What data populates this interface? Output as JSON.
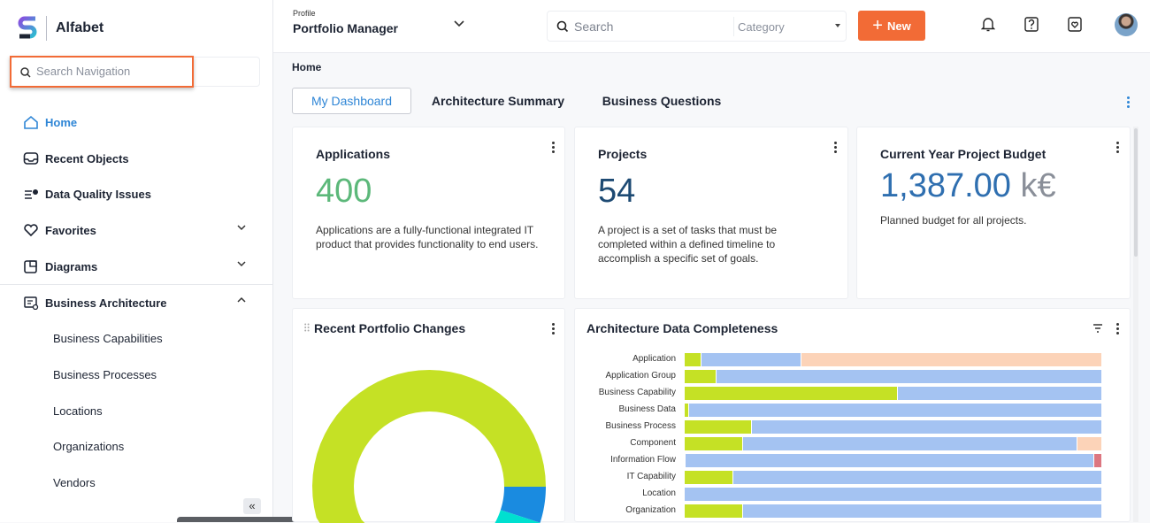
{
  "app": {
    "name": "Alfabet"
  },
  "sidebar": {
    "search_placeholder": "Search Navigation",
    "items": [
      {
        "label": "Home",
        "icon": "home-icon",
        "active": true
      },
      {
        "label": "Recent Objects",
        "icon": "inbox-icon"
      },
      {
        "label": "Data Quality Issues",
        "icon": "data-quality-icon"
      },
      {
        "label": "Favorites",
        "icon": "heart-icon",
        "expand": "down"
      },
      {
        "label": "Diagrams",
        "icon": "diagram-icon",
        "expand": "down"
      },
      {
        "label": "Business Architecture",
        "icon": "business-architecture-icon",
        "expand": "up"
      }
    ],
    "sub_items": [
      "Business Capabilities",
      "Business Processes",
      "Locations",
      "Organizations",
      "Vendors"
    ],
    "collapse_label": "«"
  },
  "header": {
    "profile_label": "Profile",
    "profile_value": "Portfolio Manager",
    "search_placeholder": "Search",
    "category_placeholder": "Category",
    "new_label": "New"
  },
  "breadcrumb": "Home",
  "tabs": [
    {
      "label": "My Dashboard",
      "active": true
    },
    {
      "label": "Architecture Summary"
    },
    {
      "label": "Business Questions"
    }
  ],
  "cards": {
    "applications": {
      "title": "Applications",
      "value": "400",
      "desc": "Applications are a fully-functional integrated IT product that provides functionality to end users.",
      "color": "#5cb87a"
    },
    "projects": {
      "title": "Projects",
      "value": "54",
      "desc": "A project is a set of tasks that must be completed within a defined timeline to accomplish a specific set of goals.",
      "color": "#1d4a73"
    },
    "budget": {
      "title": "Current Year Project Budget",
      "value": "1,387.00",
      "unit": "k€",
      "desc": "Planned budget for all projects.",
      "color": "#2f6fb0"
    }
  },
  "chart_data": [
    {
      "type": "pie",
      "title": "Recent Portfolio Changes",
      "donut": true,
      "slices": [
        {
          "value": 5,
          "color": "#1a8be0"
        },
        {
          "value": 7,
          "color": "#00e0d0"
        },
        {
          "value": 88,
          "color": "#c5e125"
        }
      ]
    },
    {
      "type": "bar",
      "stacked": true,
      "orientation": "horizontal",
      "title": "Architecture Data Completeness",
      "xlim": [
        0,
        100
      ],
      "categories": [
        "Application",
        "Application Group",
        "Business Capability",
        "Business Data",
        "Business Process",
        "Component",
        "Information Flow",
        "IT Capability",
        "Location",
        "Organization"
      ],
      "colors": [
        "#c5e125",
        "#a4c3f2",
        "#fcd3b8",
        "#dc7680"
      ],
      "series": [
        {
          "values": [
            4,
            7.6,
            51,
            1,
            16,
            14,
            0.3,
            11.6,
            0,
            14
          ]
        },
        {
          "values": [
            24,
            92.4,
            49,
            99,
            84,
            80,
            97.7,
            88.4,
            100,
            86
          ]
        },
        {
          "values": [
            72,
            0,
            0,
            0,
            0,
            6,
            0,
            0,
            0,
            0
          ]
        },
        {
          "values": [
            0,
            0,
            0,
            0,
            0,
            0,
            2,
            0,
            0,
            0
          ]
        }
      ]
    }
  ]
}
